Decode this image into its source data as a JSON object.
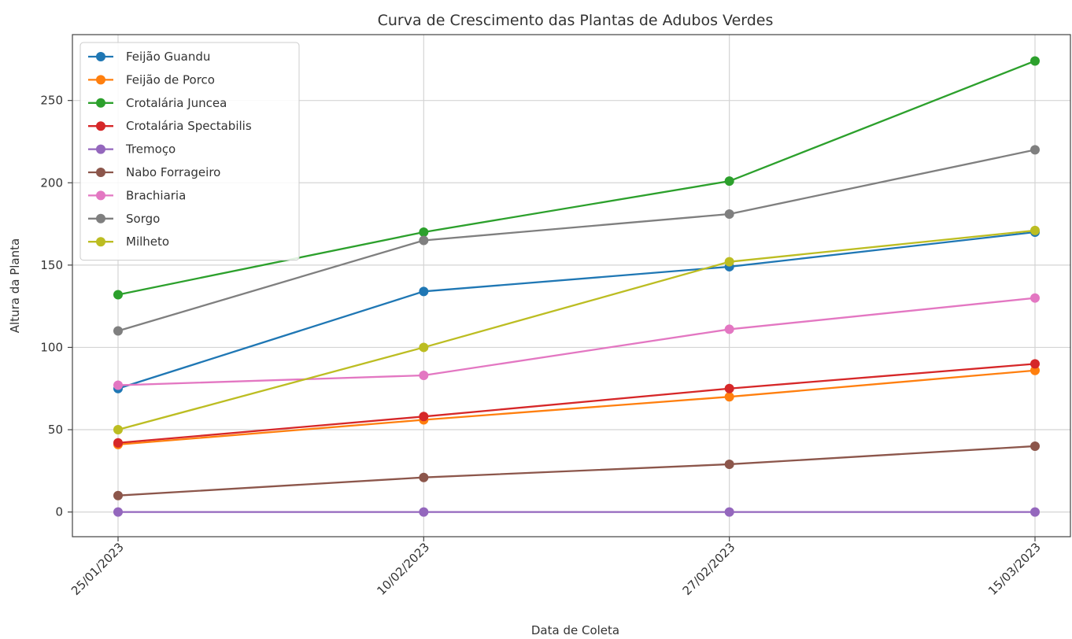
{
  "chart_data": {
    "type": "line",
    "title": "Curva de Crescimento das Plantas de Adubos Verdes",
    "xlabel": "Data de Coleta",
    "ylabel": "Altura da Planta",
    "categories": [
      "25/01/2023",
      "10/02/2023",
      "27/02/2023",
      "15/03/2023"
    ],
    "ylim": [
      -15,
      290
    ],
    "yticks": [
      0,
      50,
      100,
      150,
      200,
      250
    ],
    "grid": true,
    "legend_position": "top-left",
    "marker": "circle",
    "series": [
      {
        "name": "Feijão Guandu",
        "color": "#1f77b4",
        "values": [
          75,
          134,
          149,
          170
        ]
      },
      {
        "name": "Feijão de Porco",
        "color": "#ff7f0e",
        "values": [
          41,
          56,
          70,
          86
        ]
      },
      {
        "name": "Crotalária Juncea",
        "color": "#2ca02c",
        "values": [
          132,
          170,
          201,
          274
        ]
      },
      {
        "name": "Crotalária Spectabilis",
        "color": "#d62728",
        "values": [
          42,
          58,
          75,
          90
        ]
      },
      {
        "name": "Tremoço",
        "color": "#9467bd",
        "values": [
          0,
          0,
          0,
          0
        ]
      },
      {
        "name": "Nabo Forrageiro",
        "color": "#8c564b",
        "values": [
          10,
          21,
          29,
          40
        ]
      },
      {
        "name": "Brachiaria",
        "color": "#e377c2",
        "values": [
          77,
          83,
          111,
          130
        ]
      },
      {
        "name": "Sorgo",
        "color": "#7f7f7f",
        "values": [
          110,
          165,
          181,
          220
        ]
      },
      {
        "name": "Milheto",
        "color": "#bcbd22",
        "values": [
          50,
          100,
          152,
          171
        ]
      }
    ]
  }
}
